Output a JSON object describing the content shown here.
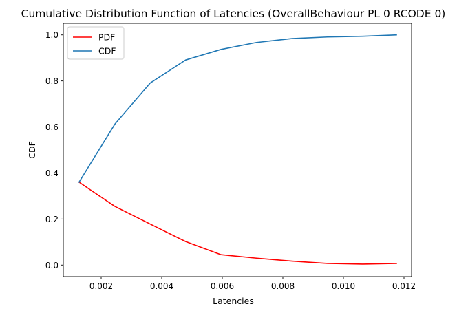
{
  "chart_data": {
    "type": "line",
    "title": "Cumulative Distribution Function of Latencies (OverallBehaviour PL 0 RCODE 0)",
    "xlabel": "Latencies",
    "ylabel": "CDF",
    "xlim": [
      0.00075,
      0.01225
    ],
    "ylim": [
      -0.05,
      1.05
    ],
    "xticks": [
      0.002,
      0.004,
      0.006,
      0.008,
      0.01,
      0.012
    ],
    "xtick_labels": [
      "0.002",
      "0.004",
      "0.006",
      "0.008",
      "0.010",
      "0.012"
    ],
    "yticks": [
      0.0,
      0.2,
      0.4,
      0.6,
      0.8,
      1.0
    ],
    "ytick_labels": [
      "0.0",
      "0.2",
      "0.4",
      "0.6",
      "0.8",
      "1.0"
    ],
    "grid": false,
    "legend_position": "top-left",
    "x": [
      0.00127,
      0.00245,
      0.00362,
      0.00479,
      0.00596,
      0.00713,
      0.0083,
      0.00947,
      0.01064,
      0.01175
    ],
    "series": [
      {
        "name": "PDF",
        "color": "#ff0000",
        "values": [
          0.36,
          0.255,
          0.178,
          0.102,
          0.045,
          0.03,
          0.017,
          0.007,
          0.004,
          0.007
        ]
      },
      {
        "name": "CDF",
        "color": "#1f77b4",
        "values": [
          0.36,
          0.612,
          0.791,
          0.891,
          0.937,
          0.967,
          0.984,
          0.991,
          0.994,
          1.0
        ]
      }
    ]
  }
}
